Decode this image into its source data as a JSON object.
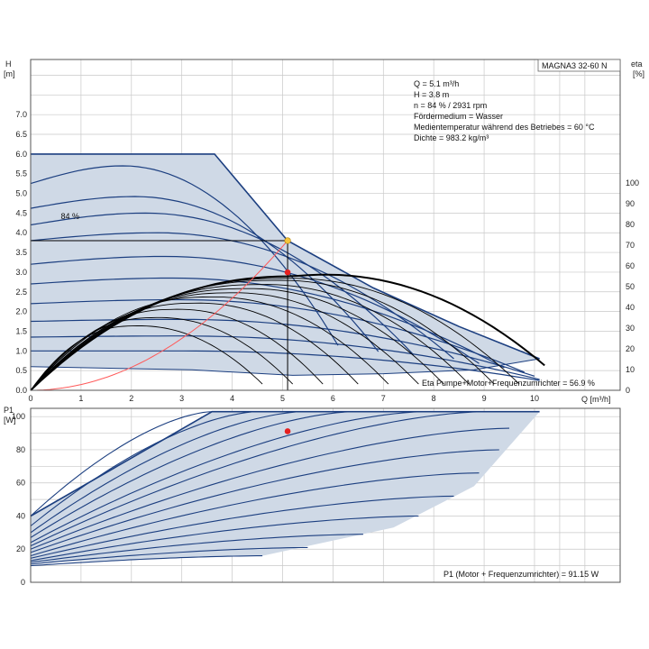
{
  "chart_data": [
    {
      "type": "line",
      "title": "MAGNA3 32-60 N",
      "xlabel": "Q [m³/h]",
      "ylabel_left_name": "H",
      "ylabel_left_unit": "[m]",
      "ylabel_right_name": "eta",
      "ylabel_right_unit": "[%]",
      "xlim": [
        0,
        11.7
      ],
      "ylim": [
        0,
        8.4
      ],
      "y2lim": [
        0,
        100
      ],
      "x_ticks": [
        0,
        1,
        2,
        3,
        4,
        5,
        6,
        7,
        8,
        9,
        10
      ],
      "y_ticks": [
        0,
        0.5,
        1,
        1.5,
        2,
        2.5,
        3,
        3.5,
        4,
        4.5,
        5,
        5.5,
        6,
        6.5,
        7
      ],
      "y2_ticks": [
        0,
        10,
        20,
        30,
        40,
        50,
        60,
        70,
        80,
        90,
        100
      ],
      "grid": true,
      "operating_range": {
        "upper": [
          [
            0,
            6.0
          ],
          [
            3.65,
            6.0
          ],
          [
            5.1,
            3.8
          ],
          [
            6.8,
            2.6
          ],
          [
            8.5,
            1.62
          ],
          [
            10.1,
            0.8
          ]
        ],
        "lower": [
          [
            0,
            0.6
          ],
          [
            3.2,
            0.52
          ],
          [
            5.2,
            0.38
          ],
          [
            7.0,
            0.42
          ],
          [
            8.8,
            0.52
          ],
          [
            10.1,
            0.8
          ]
        ]
      },
      "pump_curves": [
        {
          "h0": 5.25,
          "hmax": 5.7,
          "qend": 6.1
        },
        {
          "h0": 4.62,
          "hmax": 4.92,
          "qend": 6.9
        },
        {
          "h0": 4.2,
          "hmax": 4.5,
          "qend": 7.6
        },
        {
          "h0": 3.8,
          "hmax": 4.0,
          "qend": 8.4
        },
        {
          "h0": 3.2,
          "hmax": 3.4,
          "qend": 8.9
        },
        {
          "h0": 2.7,
          "hmax": 2.85,
          "qend": 9.4
        },
        {
          "h0": 2.2,
          "hmax": 2.3,
          "qend": 9.8
        },
        {
          "h0": 1.75,
          "hmax": 1.8,
          "qend": 10.0
        },
        {
          "h0": 1.35,
          "hmax": 1.38,
          "qend": 10.1
        },
        {
          "h0": 1.0,
          "hmax": 1.0,
          "qend": 10.1
        }
      ],
      "efficiency_curves": [
        {
          "peak_q": 5.2,
          "peak_eta": 55,
          "qend": 10.2
        },
        {
          "peak_q": 5.0,
          "peak_eta": 54,
          "qend": 9.7
        },
        {
          "peak_q": 4.8,
          "peak_eta": 53,
          "qend": 9.2
        },
        {
          "peak_q": 4.5,
          "peak_eta": 51,
          "qend": 8.7
        },
        {
          "peak_q": 4.2,
          "peak_eta": 49,
          "qend": 8.2
        },
        {
          "peak_q": 3.9,
          "peak_eta": 47,
          "qend": 7.7
        },
        {
          "peak_q": 3.5,
          "peak_eta": 45,
          "qend": 7.1
        },
        {
          "peak_q": 3.2,
          "peak_eta": 42,
          "qend": 6.5
        },
        {
          "peak_q": 2.8,
          "peak_eta": 39,
          "qend": 5.8
        },
        {
          "peak_q": 2.4,
          "peak_eta": 35,
          "qend": 5.2
        },
        {
          "peak_q": 2.0,
          "peak_eta": 31,
          "qend": 4.6
        }
      ],
      "duty_curve_label": "84 %",
      "duty_curve_label_at": [
        0.6,
        4.35
      ],
      "system_curve": {
        "q_op": 5.1,
        "h_op": 3.8
      },
      "operating_point": {
        "q": 5.1,
        "h": 3.8
      },
      "efficiency_point": {
        "q": 5.1,
        "eta": 56.9
      },
      "info_lines": [
        "Q = 5.1 m³/h",
        "H = 3.8 m",
        "n = 84 % / 2931 rpm",
        "Fördermedium = Wasser",
        "Medientemperatur während des Betriebes = 60 °C",
        "Dichte = 983.2 kg/m³"
      ],
      "footer_label": "Eta Pumpe+Motor+Frequenzumrichter = 56.9 %"
    },
    {
      "type": "line",
      "ylabel_name": "P1",
      "ylabel_unit": "[W]",
      "xlim": [
        0,
        11.7
      ],
      "ylim": [
        0,
        105
      ],
      "y_ticks": [
        0,
        20,
        40,
        60,
        80,
        100
      ],
      "grid": true,
      "operating_range": {
        "upper": [
          [
            0,
            40
          ],
          [
            3.6,
            103
          ],
          [
            10.1,
            103
          ]
        ],
        "lower": [
          [
            0,
            12
          ],
          [
            4.6,
            16
          ],
          [
            7.2,
            33
          ],
          [
            8.8,
            58
          ],
          [
            10.1,
            103
          ]
        ]
      },
      "power_curves": [
        {
          "p0": 40,
          "pend": 103,
          "qend": 3.6
        },
        {
          "p0": 34,
          "pend": 103,
          "qend": 4.5
        },
        {
          "p0": 30,
          "pend": 103,
          "qend": 5.4
        },
        {
          "p0": 27,
          "pend": 103,
          "qend": 6.4
        },
        {
          "p0": 24,
          "pend": 103,
          "qend": 7.8
        },
        {
          "p0": 22,
          "pend": 103,
          "qend": 9.0
        },
        {
          "p0": 20,
          "pend": 93,
          "qend": 9.5
        },
        {
          "p0": 18,
          "pend": 80,
          "qend": 9.3
        },
        {
          "p0": 16,
          "pend": 66,
          "qend": 8.9
        },
        {
          "p0": 14.5,
          "pend": 52,
          "qend": 8.4
        },
        {
          "p0": 13,
          "pend": 40,
          "qend": 7.7
        },
        {
          "p0": 12,
          "pend": 29,
          "qend": 6.6
        },
        {
          "p0": 11,
          "pend": 21,
          "qend": 5.5
        },
        {
          "p0": 10,
          "pend": 16,
          "qend": 4.6
        }
      ],
      "operating_point": {
        "q": 5.1,
        "p1": 91.15
      },
      "footer_label": "P1 (Motor + Frequenzumrichter) = 91.15 W"
    }
  ],
  "colors": {
    "fill": "#cfd9e6",
    "curve": "#1c3f80",
    "efficiency": "#000000",
    "system": "#ff5a5a",
    "point_op": "#f6c53c",
    "point_red": "#e62020",
    "grid": "#c8c8c8"
  }
}
